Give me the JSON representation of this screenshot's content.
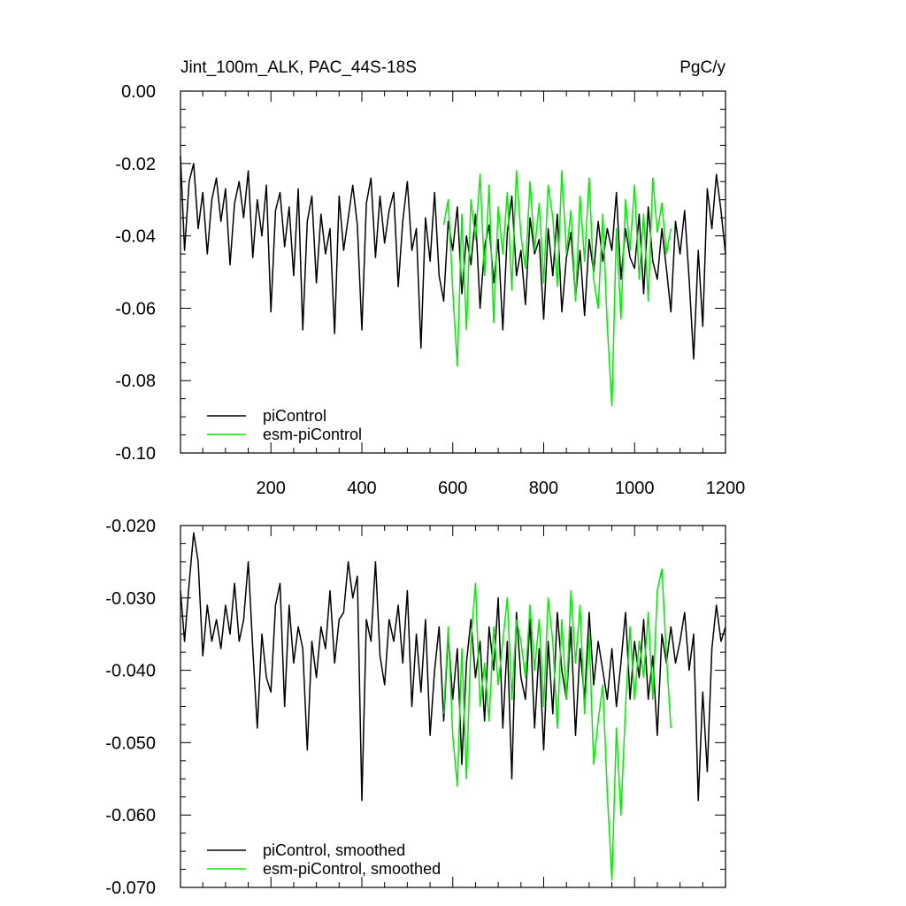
{
  "title_left": "Jint_100m_ALK, PAC_44S-18S",
  "title_right": "PgC/y",
  "colors": {
    "picontrol": "#000000",
    "esm": "#00ee00",
    "axis": "#000000"
  },
  "chart_data": [
    {
      "type": "line",
      "panel": "top",
      "title": "Jint_100m_ALK, PAC_44S-18S",
      "units": "PgC/y",
      "xlabel": "",
      "ylabel": "",
      "xlim": [
        1,
        1200
      ],
      "ylim": [
        -0.1,
        0.0
      ],
      "x_ticks": [
        200,
        400,
        600,
        800,
        1000,
        1200
      ],
      "x_tick_labels": [
        "200",
        "400",
        "600",
        "800",
        "1000",
        "1200"
      ],
      "y_ticks": [
        0.0,
        -0.02,
        -0.04,
        -0.06,
        -0.08,
        -0.1
      ],
      "y_tick_labels": [
        "0.00",
        "-0.02",
        "-0.04",
        "-0.06",
        "-0.08",
        "-0.10"
      ],
      "legend_position": "bottom-left",
      "series": [
        {
          "name": "piControl",
          "color": "#000000",
          "x": [
            1,
            10,
            20,
            30,
            40,
            50,
            60,
            70,
            80,
            90,
            100,
            110,
            120,
            130,
            140,
            150,
            160,
            170,
            180,
            190,
            200,
            210,
            220,
            230,
            240,
            250,
            260,
            270,
            280,
            290,
            300,
            310,
            320,
            330,
            340,
            350,
            360,
            370,
            380,
            390,
            400,
            410,
            420,
            430,
            440,
            450,
            460,
            470,
            480,
            490,
            500,
            510,
            520,
            530,
            540,
            550,
            560,
            570,
            580,
            590,
            600,
            610,
            620,
            630,
            640,
            650,
            660,
            670,
            680,
            690,
            700,
            710,
            720,
            730,
            740,
            750,
            760,
            770,
            780,
            790,
            800,
            810,
            820,
            830,
            840,
            850,
            860,
            870,
            880,
            890,
            900,
            910,
            920,
            930,
            940,
            950,
            960,
            970,
            980,
            990,
            1000,
            1010,
            1020,
            1030,
            1040,
            1050,
            1060,
            1070,
            1080,
            1090,
            1100,
            1110,
            1120,
            1130,
            1140,
            1150,
            1160,
            1170,
            1180,
            1190,
            1200
          ],
          "y": [
            -0.018,
            -0.044,
            -0.025,
            -0.02,
            -0.038,
            -0.028,
            -0.045,
            -0.03,
            -0.024,
            -0.036,
            -0.027,
            -0.048,
            -0.031,
            -0.025,
            -0.035,
            -0.022,
            -0.046,
            -0.03,
            -0.04,
            -0.026,
            -0.061,
            -0.033,
            -0.028,
            -0.043,
            -0.032,
            -0.051,
            -0.027,
            -0.066,
            -0.036,
            -0.029,
            -0.053,
            -0.034,
            -0.045,
            -0.038,
            -0.067,
            -0.029,
            -0.044,
            -0.035,
            -0.026,
            -0.037,
            -0.066,
            -0.031,
            -0.024,
            -0.046,
            -0.029,
            -0.042,
            -0.033,
            -0.028,
            -0.054,
            -0.036,
            -0.025,
            -0.044,
            -0.038,
            -0.071,
            -0.035,
            -0.047,
            -0.028,
            -0.051,
            -0.058,
            -0.036,
            -0.044,
            -0.032,
            -0.056,
            -0.04,
            -0.048,
            -0.034,
            -0.06,
            -0.043,
            -0.037,
            -0.053,
            -0.041,
            -0.066,
            -0.039,
            -0.029,
            -0.051,
            -0.044,
            -0.059,
            -0.035,
            -0.045,
            -0.041,
            -0.063,
            -0.038,
            -0.051,
            -0.034,
            -0.061,
            -0.046,
            -0.039,
            -0.057,
            -0.044,
            -0.062,
            -0.041,
            -0.05,
            -0.036,
            -0.047,
            -0.038,
            -0.044,
            -0.028,
            -0.052,
            -0.038,
            -0.046,
            -0.049,
            -0.034,
            -0.056,
            -0.032,
            -0.047,
            -0.052,
            -0.038,
            -0.049,
            -0.061,
            -0.036,
            -0.045,
            -0.033,
            -0.052,
            -0.074,
            -0.044,
            -0.065,
            -0.027,
            -0.038,
            -0.023,
            -0.033,
            -0.045
          ]
        },
        {
          "name": "esm-piControl",
          "color": "#00ee00",
          "x": [
            580,
            590,
            600,
            610,
            620,
            630,
            640,
            650,
            660,
            670,
            680,
            690,
            700,
            710,
            720,
            730,
            740,
            750,
            760,
            770,
            780,
            790,
            800,
            810,
            820,
            830,
            840,
            850,
            860,
            870,
            880,
            890,
            900,
            910,
            920,
            930,
            940,
            950,
            960,
            970,
            980,
            990,
            1000,
            1010,
            1020,
            1030,
            1040,
            1050,
            1060,
            1070,
            1080
          ],
          "y": [
            -0.037,
            -0.03,
            -0.055,
            -0.076,
            -0.034,
            -0.066,
            -0.03,
            -0.041,
            -0.023,
            -0.051,
            -0.026,
            -0.064,
            -0.032,
            -0.045,
            -0.028,
            -0.055,
            -0.022,
            -0.04,
            -0.049,
            -0.025,
            -0.044,
            -0.031,
            -0.053,
            -0.026,
            -0.035,
            -0.054,
            -0.022,
            -0.045,
            -0.033,
            -0.058,
            -0.029,
            -0.047,
            -0.024,
            -0.052,
            -0.06,
            -0.034,
            -0.065,
            -0.087,
            -0.038,
            -0.063,
            -0.03,
            -0.044,
            -0.026,
            -0.052,
            -0.034,
            -0.058,
            -0.024,
            -0.039,
            -0.031,
            -0.045,
            -0.038
          ]
        }
      ]
    },
    {
      "type": "line",
      "panel": "bottom",
      "title": "",
      "xlabel": "",
      "ylabel": "",
      "xlim": [
        1,
        1200
      ],
      "ylim": [
        -0.07,
        -0.02
      ],
      "y_ticks": [
        -0.02,
        -0.03,
        -0.04,
        -0.05,
        -0.06,
        -0.07
      ],
      "y_tick_labels": [
        "-0.020",
        "-0.030",
        "-0.040",
        "-0.050",
        "-0.060",
        "-0.070"
      ],
      "legend_position": "bottom-left",
      "series": [
        {
          "name": "piControl, smoothed",
          "color": "#000000",
          "x": [
            1,
            10,
            20,
            30,
            40,
            50,
            60,
            70,
            80,
            90,
            100,
            110,
            120,
            130,
            140,
            150,
            160,
            170,
            180,
            190,
            200,
            210,
            220,
            230,
            240,
            250,
            260,
            270,
            280,
            290,
            300,
            310,
            320,
            330,
            340,
            350,
            360,
            370,
            380,
            390,
            400,
            410,
            420,
            430,
            440,
            450,
            460,
            470,
            480,
            490,
            500,
            510,
            520,
            530,
            540,
            550,
            560,
            570,
            580,
            590,
            600,
            610,
            620,
            630,
            640,
            650,
            660,
            670,
            680,
            690,
            700,
            710,
            720,
            730,
            740,
            750,
            760,
            770,
            780,
            790,
            800,
            810,
            820,
            830,
            840,
            850,
            860,
            870,
            880,
            890,
            900,
            910,
            920,
            930,
            940,
            950,
            960,
            970,
            980,
            990,
            1000,
            1010,
            1020,
            1030,
            1040,
            1050,
            1060,
            1070,
            1080,
            1090,
            1100,
            1110,
            1120,
            1130,
            1140,
            1150,
            1160,
            1170,
            1180,
            1190,
            1200
          ],
          "y": [
            -0.029,
            -0.036,
            -0.028,
            -0.021,
            -0.025,
            -0.038,
            -0.031,
            -0.036,
            -0.033,
            -0.037,
            -0.031,
            -0.035,
            -0.028,
            -0.036,
            -0.033,
            -0.025,
            -0.037,
            -0.048,
            -0.035,
            -0.041,
            -0.043,
            -0.031,
            -0.028,
            -0.045,
            -0.031,
            -0.039,
            -0.034,
            -0.037,
            -0.051,
            -0.036,
            -0.041,
            -0.034,
            -0.037,
            -0.029,
            -0.039,
            -0.033,
            -0.032,
            -0.025,
            -0.03,
            -0.027,
            -0.058,
            -0.033,
            -0.036,
            -0.025,
            -0.038,
            -0.042,
            -0.033,
            -0.036,
            -0.031,
            -0.039,
            -0.029,
            -0.045,
            -0.035,
            -0.043,
            -0.033,
            -0.049,
            -0.04,
            -0.034,
            -0.047,
            -0.035,
            -0.044,
            -0.037,
            -0.053,
            -0.039,
            -0.033,
            -0.041,
            -0.036,
            -0.047,
            -0.034,
            -0.04,
            -0.03,
            -0.048,
            -0.036,
            -0.055,
            -0.032,
            -0.041,
            -0.044,
            -0.033,
            -0.048,
            -0.037,
            -0.051,
            -0.036,
            -0.046,
            -0.032,
            -0.04,
            -0.044,
            -0.034,
            -0.049,
            -0.037,
            -0.044,
            -0.032,
            -0.042,
            -0.036,
            -0.04,
            -0.044,
            -0.037,
            -0.045,
            -0.039,
            -0.032,
            -0.044,
            -0.036,
            -0.041,
            -0.033,
            -0.044,
            -0.038,
            -0.049,
            -0.035,
            -0.039,
            -0.034,
            -0.039,
            -0.036,
            -0.032,
            -0.04,
            -0.035,
            -0.058,
            -0.043,
            -0.054,
            -0.037,
            -0.031,
            -0.036,
            -0.034
          ]
        },
        {
          "name": "esm-piControl, smoothed",
          "color": "#00ee00",
          "x": [
            580,
            590,
            600,
            610,
            620,
            630,
            640,
            650,
            660,
            670,
            680,
            690,
            700,
            710,
            720,
            730,
            740,
            750,
            760,
            770,
            780,
            790,
            800,
            810,
            820,
            830,
            840,
            850,
            860,
            870,
            880,
            890,
            900,
            910,
            920,
            930,
            940,
            950,
            960,
            970,
            980,
            990,
            1000,
            1010,
            1020,
            1030,
            1040,
            1050,
            1060,
            1070,
            1080
          ],
          "y": [
            -0.046,
            -0.034,
            -0.049,
            -0.056,
            -0.037,
            -0.055,
            -0.036,
            -0.028,
            -0.045,
            -0.039,
            -0.047,
            -0.034,
            -0.042,
            -0.036,
            -0.03,
            -0.044,
            -0.033,
            -0.036,
            -0.041,
            -0.031,
            -0.04,
            -0.033,
            -0.045,
            -0.03,
            -0.036,
            -0.048,
            -0.033,
            -0.044,
            -0.029,
            -0.039,
            -0.031,
            -0.046,
            -0.035,
            -0.053,
            -0.047,
            -0.042,
            -0.057,
            -0.069,
            -0.048,
            -0.06,
            -0.045,
            -0.034,
            -0.044,
            -0.036,
            -0.041,
            -0.032,
            -0.044,
            -0.029,
            -0.026,
            -0.038,
            -0.048
          ]
        }
      ]
    }
  ]
}
